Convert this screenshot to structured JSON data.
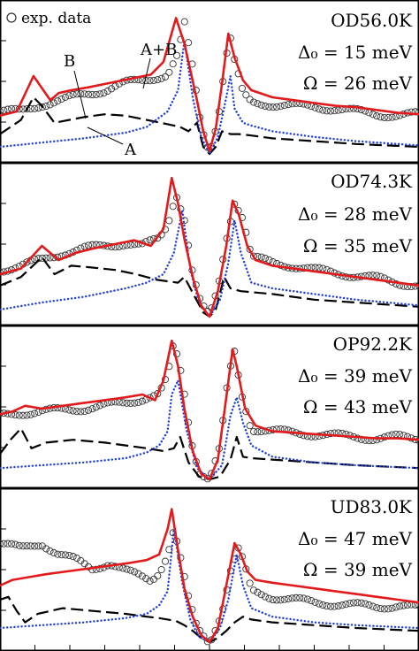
{
  "legend": {
    "marker": "circle",
    "label": "exp. data",
    "position": "top-left"
  },
  "colors": {
    "a_plus_b": "#e31a1c",
    "a": "#1f3fd6",
    "b": "#000000",
    "exp": "#333333"
  },
  "curve_labels": {
    "a_plus_b": "A+B",
    "b": "B",
    "a": "A"
  },
  "chart_data": [
    {
      "type": "line",
      "sample": "OD56.0K",
      "param1": "Δ₀ = 15 meV",
      "param2": "Ω = 26 meV",
      "series": [
        {
          "key": "exp",
          "style": "markers",
          "x": [
            -1.0,
            -0.9,
            -0.8,
            -0.7,
            -0.6,
            -0.5,
            -0.4,
            -0.32,
            -0.2,
            -0.15,
            -0.12,
            -0.08,
            -0.04,
            0,
            0.04,
            0.08,
            0.1,
            0.12,
            0.16,
            0.2,
            0.3,
            0.4,
            0.5,
            0.6,
            0.7,
            0.8,
            0.9,
            1.0
          ],
          "y": [
            0.3,
            0.3,
            0.35,
            0.38,
            0.42,
            0.45,
            0.5,
            0.52,
            0.56,
            0.7,
            0.92,
            0.6,
            0.2,
            0.02,
            0.25,
            0.7,
            0.82,
            0.65,
            0.42,
            0.36,
            0.35,
            0.34,
            0.33,
            0.32,
            0.3,
            0.28,
            0.27,
            0.28
          ]
        },
        {
          "key": "a_plus_b",
          "style": "solid",
          "x": [
            -1.0,
            -0.92,
            -0.84,
            -0.76,
            -0.72,
            -0.66,
            -0.58,
            -0.48,
            -0.38,
            -0.28,
            -0.22,
            -0.16,
            -0.12,
            -0.09,
            -0.06,
            -0.03,
            0,
            0.03,
            0.06,
            0.09,
            0.12,
            0.16,
            0.2,
            0.3,
            0.4,
            0.5,
            0.6,
            0.7,
            0.8,
            0.9,
            1.0
          ],
          "y": [
            0.27,
            0.3,
            0.55,
            0.38,
            0.43,
            0.45,
            0.47,
            0.5,
            0.53,
            0.56,
            0.65,
            0.96,
            0.78,
            0.58,
            0.38,
            0.16,
            0.02,
            0.18,
            0.5,
            0.85,
            0.68,
            0.52,
            0.45,
            0.4,
            0.38,
            0.36,
            0.34,
            0.33,
            0.31,
            0.29,
            0.28
          ]
        },
        {
          "key": "a",
          "style": "dotted",
          "x": [
            -1.0,
            -0.8,
            -0.6,
            -0.4,
            -0.3,
            -0.2,
            -0.15,
            -0.12,
            -0.08,
            -0.04,
            0,
            0.04,
            0.08,
            0.1,
            0.12,
            0.16,
            0.2,
            0.3,
            0.5,
            0.7,
            1.0
          ],
          "y": [
            0.05,
            0.08,
            0.11,
            0.15,
            0.19,
            0.3,
            0.45,
            0.8,
            0.4,
            0.12,
            0.0,
            0.12,
            0.4,
            0.55,
            0.32,
            0.22,
            0.2,
            0.16,
            0.12,
            0.09,
            0.06
          ]
        },
        {
          "key": "b",
          "style": "dashed",
          "x": [
            -1.0,
            -0.9,
            -0.84,
            -0.8,
            -0.74,
            -0.6,
            -0.5,
            -0.4,
            -0.3,
            -0.2,
            -0.14,
            -0.1,
            -0.06,
            -0.03,
            0,
            0.03,
            0.06,
            0.1,
            0.14,
            0.2,
            0.3,
            0.5,
            0.7,
            1.0
          ],
          "y": [
            0.14,
            0.24,
            0.4,
            0.34,
            0.22,
            0.26,
            0.28,
            0.27,
            0.24,
            0.21,
            0.19,
            0.16,
            0.22,
            0.05,
            0.0,
            0.05,
            0.16,
            0.14,
            0.14,
            0.13,
            0.11,
            0.09,
            0.07,
            0.05
          ]
        }
      ],
      "ylim": [
        0,
        1
      ]
    },
    {
      "type": "line",
      "sample": "OD74.3K",
      "param1": "Δ₀ = 28 meV",
      "param2": "Ω = 35 meV",
      "series": [
        {
          "key": "exp",
          "style": "markers",
          "x": [
            -1.0,
            -0.9,
            -0.8,
            -0.7,
            -0.6,
            -0.5,
            -0.4,
            -0.32,
            -0.24,
            -0.2,
            -0.16,
            -0.12,
            -0.08,
            -0.04,
            0,
            0.04,
            0.08,
            0.12,
            0.16,
            0.2,
            0.3,
            0.4,
            0.5,
            0.6,
            0.7,
            0.8,
            0.9,
            1.0
          ],
          "y": [
            0.33,
            0.36,
            0.4,
            0.45,
            0.48,
            0.5,
            0.52,
            0.5,
            0.55,
            0.65,
            0.88,
            0.7,
            0.3,
            0.08,
            0.0,
            0.2,
            0.55,
            0.82,
            0.7,
            0.42,
            0.38,
            0.36,
            0.33,
            0.31,
            0.29,
            0.27,
            0.24,
            0.22
          ]
        },
        {
          "key": "a_plus_b",
          "style": "solid",
          "x": [
            -1.0,
            -0.9,
            -0.8,
            -0.72,
            -0.64,
            -0.56,
            -0.46,
            -0.36,
            -0.28,
            -0.22,
            -0.18,
            -0.15,
            -0.12,
            -0.08,
            -0.04,
            0,
            0.04,
            0.08,
            0.11,
            0.14,
            0.18,
            0.22,
            0.3,
            0.4,
            0.5,
            0.6,
            0.7,
            0.8,
            0.9,
            1.0
          ],
          "y": [
            0.3,
            0.34,
            0.5,
            0.4,
            0.45,
            0.48,
            0.51,
            0.54,
            0.5,
            0.62,
            0.98,
            0.8,
            0.55,
            0.28,
            0.08,
            0.0,
            0.18,
            0.5,
            0.82,
            0.72,
            0.5,
            0.4,
            0.36,
            0.34,
            0.32,
            0.3,
            0.28,
            0.26,
            0.24,
            0.22
          ]
        },
        {
          "key": "a",
          "style": "dotted",
          "x": [
            -1.0,
            -0.8,
            -0.6,
            -0.4,
            -0.3,
            -0.22,
            -0.17,
            -0.13,
            -0.09,
            -0.05,
            0,
            0.05,
            0.09,
            0.12,
            0.15,
            0.2,
            0.3,
            0.5,
            0.7,
            1.0
          ],
          "y": [
            0.05,
            0.1,
            0.14,
            0.2,
            0.24,
            0.3,
            0.45,
            0.75,
            0.32,
            0.1,
            0.0,
            0.12,
            0.38,
            0.68,
            0.45,
            0.24,
            0.2,
            0.16,
            0.12,
            0.08
          ]
        },
        {
          "key": "b",
          "style": "dashed",
          "x": [
            -1.0,
            -0.9,
            -0.8,
            -0.74,
            -0.66,
            -0.58,
            -0.45,
            -0.35,
            -0.25,
            -0.15,
            -0.12,
            -0.07,
            -0.03,
            0,
            0.03,
            0.07,
            0.1,
            0.15,
            0.3,
            0.5,
            0.7,
            1.0
          ],
          "y": [
            0.22,
            0.28,
            0.42,
            0.3,
            0.36,
            0.35,
            0.33,
            0.3,
            0.26,
            0.24,
            0.28,
            0.14,
            0.03,
            0.0,
            0.05,
            0.28,
            0.2,
            0.18,
            0.16,
            0.12,
            0.1,
            0.07
          ]
        }
      ],
      "ylim": [
        0,
        1
      ]
    },
    {
      "type": "line",
      "sample": "OP92.2K",
      "param1": "Δ₀ = 39 meV",
      "param2": "Ω = 43 meV",
      "series": [
        {
          "key": "exp",
          "style": "markers",
          "x": [
            -1.0,
            -0.9,
            -0.8,
            -0.7,
            -0.6,
            -0.5,
            -0.4,
            -0.3,
            -0.24,
            -0.2,
            -0.17,
            -0.13,
            -0.09,
            -0.05,
            0,
            0.05,
            0.09,
            0.12,
            0.15,
            0.2,
            0.3,
            0.4,
            0.5,
            0.6,
            0.7,
            0.8,
            0.9,
            1.0
          ],
          "y": [
            0.45,
            0.47,
            0.48,
            0.49,
            0.5,
            0.52,
            0.54,
            0.58,
            0.6,
            0.72,
            0.96,
            0.72,
            0.3,
            0.06,
            0.0,
            0.22,
            0.72,
            0.9,
            0.62,
            0.36,
            0.34,
            0.33,
            0.32,
            0.31,
            0.3,
            0.29,
            0.3,
            0.29
          ]
        },
        {
          "key": "a_plus_b",
          "style": "solid",
          "x": [
            -1.0,
            -0.94,
            -0.88,
            -0.8,
            -0.7,
            -0.6,
            -0.5,
            -0.4,
            -0.32,
            -0.26,
            -0.22,
            -0.18,
            -0.15,
            -0.12,
            -0.08,
            -0.04,
            0,
            0.04,
            0.08,
            0.11,
            0.13,
            0.17,
            0.22,
            0.3,
            0.4,
            0.5,
            0.6,
            0.7,
            0.8,
            0.9,
            1.0
          ],
          "y": [
            0.46,
            0.48,
            0.52,
            0.5,
            0.52,
            0.54,
            0.56,
            0.58,
            0.6,
            0.56,
            0.7,
            0.98,
            0.8,
            0.5,
            0.2,
            0.04,
            0.0,
            0.14,
            0.58,
            0.92,
            0.8,
            0.5,
            0.38,
            0.34,
            0.33,
            0.32,
            0.31,
            0.3,
            0.29,
            0.29,
            0.28
          ]
        },
        {
          "key": "a",
          "style": "dotted",
          "x": [
            -1.0,
            -0.8,
            -0.6,
            -0.4,
            -0.3,
            -0.24,
            -0.2,
            -0.18,
            -0.15,
            -0.11,
            -0.06,
            0,
            0.06,
            0.1,
            0.13,
            0.16,
            0.2,
            0.3,
            0.5,
            0.7,
            1.0
          ],
          "y": [
            0.08,
            0.1,
            0.12,
            0.15,
            0.19,
            0.24,
            0.34,
            0.6,
            0.7,
            0.35,
            0.08,
            0.0,
            0.1,
            0.45,
            0.58,
            0.4,
            0.24,
            0.16,
            0.12,
            0.1,
            0.08
          ]
        },
        {
          "key": "b",
          "style": "dashed",
          "x": [
            -1.0,
            -0.95,
            -0.9,
            -0.85,
            -0.78,
            -0.65,
            -0.5,
            -0.4,
            -0.3,
            -0.22,
            -0.17,
            -0.14,
            -0.1,
            -0.05,
            0,
            0.05,
            0.1,
            0.13,
            0.16,
            0.2,
            0.3,
            0.5,
            0.7,
            1.0
          ],
          "y": [
            0.18,
            0.28,
            0.36,
            0.22,
            0.26,
            0.28,
            0.26,
            0.24,
            0.22,
            0.2,
            0.22,
            0.3,
            0.12,
            0.02,
            0.0,
            0.02,
            0.14,
            0.3,
            0.16,
            0.15,
            0.14,
            0.12,
            0.1,
            0.08
          ]
        }
      ],
      "ylim": [
        0,
        1
      ]
    },
    {
      "type": "line",
      "sample": "UD83.0K",
      "param1": "Δ₀ = 47 meV",
      "param2": "Ω = 39 meV",
      "series": [
        {
          "key": "exp",
          "style": "markers",
          "x": [
            -1.0,
            -0.9,
            -0.8,
            -0.72,
            -0.64,
            -0.56,
            -0.48,
            -0.4,
            -0.32,
            -0.28,
            -0.24,
            -0.2,
            -0.17,
            -0.14,
            -0.1,
            -0.06,
            0,
            0.06,
            0.1,
            0.14,
            0.17,
            0.2,
            0.3,
            0.4,
            0.5,
            0.6,
            0.7,
            0.8,
            0.9,
            1.0
          ],
          "y": [
            0.7,
            0.66,
            0.7,
            0.62,
            0.58,
            0.52,
            0.56,
            0.5,
            0.46,
            0.44,
            0.5,
            0.62,
            0.8,
            0.6,
            0.3,
            0.1,
            0.0,
            0.22,
            0.5,
            0.66,
            0.52,
            0.36,
            0.32,
            0.3,
            0.28,
            0.27,
            0.26,
            0.25,
            0.26,
            0.24
          ]
        },
        {
          "key": "a_plus_b",
          "style": "solid",
          "x": [
            -1.0,
            -0.94,
            -0.86,
            -0.78,
            -0.68,
            -0.58,
            -0.48,
            -0.38,
            -0.3,
            -0.24,
            -0.2,
            -0.18,
            -0.15,
            -0.12,
            -0.08,
            -0.04,
            0,
            0.04,
            0.08,
            0.12,
            0.15,
            0.18,
            0.22,
            0.3,
            0.4,
            0.5,
            0.6,
            0.7,
            0.8,
            0.9,
            1.0
          ],
          "y": [
            0.4,
            0.44,
            0.46,
            0.48,
            0.5,
            0.52,
            0.54,
            0.56,
            0.58,
            0.62,
            0.8,
            0.94,
            0.65,
            0.38,
            0.18,
            0.05,
            0.0,
            0.1,
            0.4,
            0.7,
            0.62,
            0.5,
            0.44,
            0.42,
            0.4,
            0.38,
            0.36,
            0.34,
            0.32,
            0.3,
            0.28
          ]
        },
        {
          "key": "a",
          "style": "dotted",
          "x": [
            -1.0,
            -0.8,
            -0.6,
            -0.4,
            -0.3,
            -0.24,
            -0.2,
            -0.17,
            -0.13,
            -0.09,
            -0.05,
            0,
            0.05,
            0.09,
            0.13,
            0.16,
            0.2,
            0.3,
            0.5,
            0.7,
            1.0
          ],
          "y": [
            0.1,
            0.12,
            0.14,
            0.17,
            0.2,
            0.26,
            0.36,
            0.8,
            0.42,
            0.15,
            0.04,
            0.0,
            0.1,
            0.3,
            0.62,
            0.4,
            0.24,
            0.18,
            0.14,
            0.12,
            0.1
          ]
        },
        {
          "key": "b",
          "style": "dashed",
          "x": [
            -1.0,
            -0.96,
            -0.92,
            -0.88,
            -0.82,
            -0.7,
            -0.55,
            -0.4,
            -0.3,
            -0.24,
            -0.2,
            -0.16,
            -0.12,
            -0.08,
            -0.04,
            0,
            0.04,
            0.08,
            0.12,
            0.16,
            0.2,
            0.3,
            0.5,
            0.7,
            1.0
          ],
          "y": [
            0.3,
            0.32,
            0.22,
            0.14,
            0.2,
            0.24,
            0.22,
            0.2,
            0.18,
            0.17,
            0.16,
            0.15,
            0.12,
            0.08,
            0.03,
            0.0,
            0.03,
            0.08,
            0.14,
            0.18,
            0.16,
            0.14,
            0.12,
            0.1,
            0.08
          ]
        }
      ],
      "ylim": [
        0,
        1
      ]
    }
  ]
}
